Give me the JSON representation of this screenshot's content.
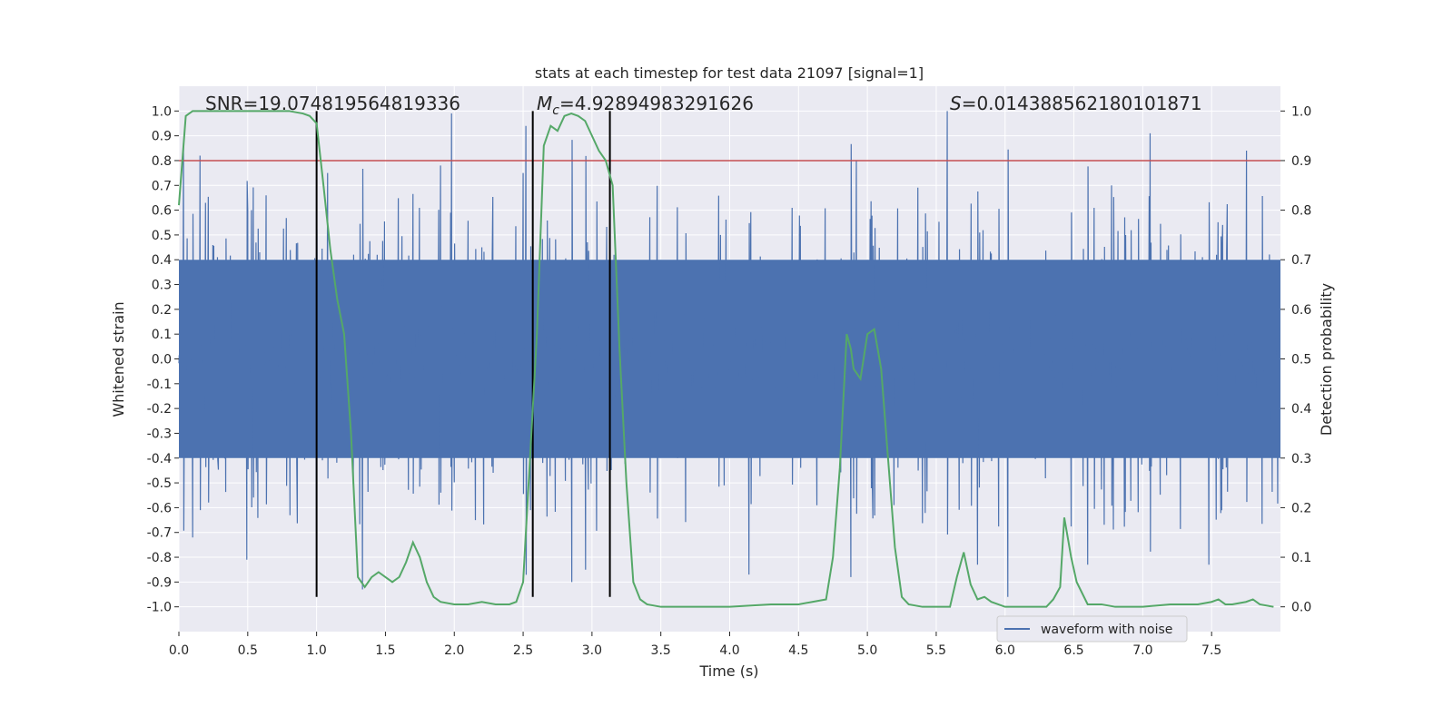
{
  "chart_data": {
    "type": "line",
    "title": "stats at each timestep for test data 21097 [signal=1]",
    "xlabel": "Time (s)",
    "ylabel": "Whitened strain",
    "y2label": "Detection probability",
    "xlim": [
      0,
      8
    ],
    "ylim": [
      -1.1,
      1.1
    ],
    "y2lim": [
      -0.05,
      1.05
    ],
    "x_ticks": [
      "0.0",
      "0.5",
      "1.0",
      "1.5",
      "2.0",
      "2.5",
      "3.0",
      "3.5",
      "4.0",
      "4.5",
      "5.0",
      "5.5",
      "6.0",
      "6.5",
      "7.0",
      "7.5"
    ],
    "y_ticks": [
      "1.0",
      "0.9",
      "0.8",
      "0.7",
      "0.6",
      "0.5",
      "0.4",
      "0.3",
      "0.2",
      "0.1",
      "0.0",
      "-0.1",
      "-0.2",
      "-0.3",
      "-0.4",
      "-0.5",
      "-0.6",
      "-0.7",
      "-0.8",
      "-0.9",
      "-1.0"
    ],
    "y2_ticks": [
      "1.0",
      "0.9",
      "0.8",
      "0.7",
      "0.6",
      "0.5",
      "0.4",
      "0.3",
      "0.2",
      "0.1",
      "0.0"
    ],
    "grid": true,
    "legend": {
      "location": "lower-right",
      "entries": [
        "waveform with noise"
      ]
    },
    "annotations": [
      {
        "prefix": "SNR",
        "italic": false,
        "subscript": "",
        "text": "=19.074819564819336"
      },
      {
        "prefix": "M",
        "italic": true,
        "subscript": "c",
        "text": "=4.92894983291626"
      },
      {
        "prefix": "S",
        "italic": true,
        "subscript": "",
        "text": "=0.014388562180101871"
      }
    ],
    "threshold_line": {
      "axis": "y2",
      "value": 0.9,
      "color": "#c44e52"
    },
    "vertical_lines": [
      1.0,
      2.57,
      3.13
    ],
    "series": [
      {
        "name": "waveform with noise",
        "axis": "y",
        "color": "#4c72b0",
        "style": "noise-envelope",
        "samples_per_second": 150,
        "core_amplitude": 0.4,
        "spike_peaks": [
          {
            "x": 0.03,
            "y": 0.87
          },
          {
            "x": 0.15,
            "y": 0.82
          },
          {
            "x": 0.5,
            "y": 0.6
          },
          {
            "x": 0.63,
            "y": 0.66
          },
          {
            "x": 1.98,
            "y": 0.99
          },
          {
            "x": 1.9,
            "y": 0.78
          },
          {
            "x": 2.52,
            "y": 0.94
          },
          {
            "x": 4.92,
            "y": 0.8
          },
          {
            "x": 5.58,
            "y": 1.0
          },
          {
            "x": 7.05,
            "y": 0.91
          },
          {
            "x": 7.75,
            "y": 0.84
          },
          {
            "x": 1.08,
            "y": 0.75
          },
          {
            "x": 2.5,
            "y": 0.75
          },
          {
            "x": 0.1,
            "y": -0.72
          },
          {
            "x": 0.49,
            "y": -0.81
          },
          {
            "x": 1.0,
            "y": -0.78
          },
          {
            "x": 1.33,
            "y": -0.93
          },
          {
            "x": 2.85,
            "y": -0.9
          },
          {
            "x": 2.95,
            "y": -0.85
          },
          {
            "x": 4.14,
            "y": -0.87
          },
          {
            "x": 4.88,
            "y": -0.88
          },
          {
            "x": 6.02,
            "y": -0.96
          },
          {
            "x": 6.6,
            "y": -0.83
          },
          {
            "x": 7.48,
            "y": -0.83
          },
          {
            "x": 5.8,
            "y": -0.83
          },
          {
            "x": 2.15,
            "y": -0.65
          }
        ]
      },
      {
        "name": "",
        "axis": "y2",
        "color": "#55a868",
        "x": [
          0.0,
          0.05,
          0.1,
          0.2,
          0.4,
          0.6,
          0.8,
          0.9,
          0.95,
          1.0,
          1.05,
          1.1,
          1.15,
          1.2,
          1.25,
          1.3,
          1.35,
          1.4,
          1.45,
          1.5,
          1.55,
          1.6,
          1.65,
          1.7,
          1.75,
          1.8,
          1.85,
          1.9,
          2.0,
          2.1,
          2.2,
          2.3,
          2.4,
          2.45,
          2.5,
          2.55,
          2.6,
          2.65,
          2.7,
          2.75,
          2.8,
          2.85,
          2.9,
          2.95,
          3.0,
          3.05,
          3.1,
          3.15,
          3.2,
          3.25,
          3.3,
          3.35,
          3.4,
          3.5,
          3.7,
          4.0,
          4.3,
          4.5,
          4.6,
          4.7,
          4.75,
          4.8,
          4.85,
          4.88,
          4.9,
          4.95,
          5.0,
          5.05,
          5.1,
          5.15,
          5.2,
          5.25,
          5.3,
          5.4,
          5.45,
          5.5,
          5.55,
          5.6,
          5.65,
          5.7,
          5.75,
          5.8,
          5.85,
          5.9,
          6.0,
          6.2,
          6.3,
          6.35,
          6.4,
          6.43,
          6.48,
          6.52,
          6.6,
          6.7,
          6.8,
          7.0,
          7.2,
          7.4,
          7.5,
          7.55,
          7.6,
          7.65,
          7.75,
          7.8,
          7.85,
          7.95
        ],
        "y": [
          0.81,
          0.99,
          1.0,
          1.0,
          1.0,
          1.0,
          1.0,
          0.995,
          0.99,
          0.975,
          0.85,
          0.72,
          0.62,
          0.55,
          0.35,
          0.06,
          0.04,
          0.06,
          0.07,
          0.06,
          0.05,
          0.06,
          0.09,
          0.13,
          0.1,
          0.05,
          0.02,
          0.01,
          0.005,
          0.005,
          0.01,
          0.005,
          0.005,
          0.01,
          0.05,
          0.3,
          0.55,
          0.93,
          0.97,
          0.96,
          0.99,
          0.995,
          0.99,
          0.98,
          0.95,
          0.92,
          0.9,
          0.85,
          0.52,
          0.25,
          0.05,
          0.015,
          0.005,
          0.0,
          0.0,
          0.0,
          0.005,
          0.005,
          0.01,
          0.015,
          0.1,
          0.28,
          0.55,
          0.52,
          0.48,
          0.46,
          0.55,
          0.56,
          0.48,
          0.3,
          0.12,
          0.02,
          0.005,
          0.0,
          0.0,
          0.0,
          0.0,
          0.0,
          0.06,
          0.11,
          0.045,
          0.015,
          0.02,
          0.01,
          0.0,
          0.0,
          0.0,
          0.015,
          0.04,
          0.18,
          0.1,
          0.05,
          0.005,
          0.005,
          0.0,
          0.0,
          0.005,
          0.005,
          0.01,
          0.015,
          0.005,
          0.005,
          0.01,
          0.015,
          0.005,
          0.0
        ]
      }
    ]
  }
}
